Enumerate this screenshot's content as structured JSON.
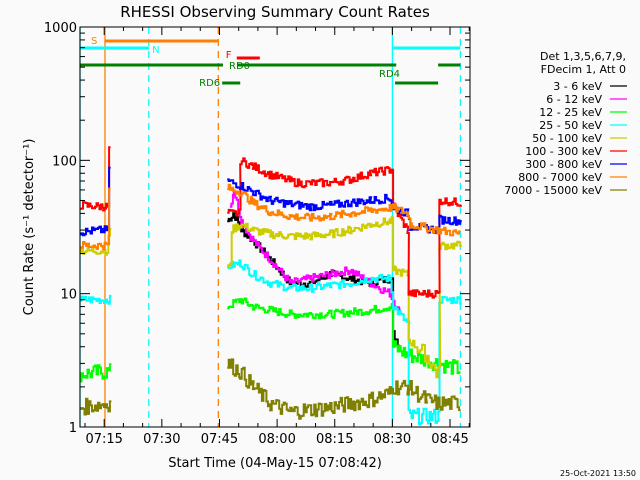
{
  "chart_data": {
    "type": "line",
    "title": "RHESSI Observing Summary Count Rates",
    "xlabel": "Start Time (04-May-15 07:08:42)",
    "ylabel": "Count Rate (s⁻¹ detector⁻¹)",
    "x_units": "minutes after 07:08:42",
    "xlim": [
      0,
      101.5
    ],
    "ylim": [
      1,
      1000
    ],
    "yscale": "log",
    "x_ticks": [
      {
        "label": "07:15",
        "min": 6.3
      },
      {
        "label": "07:30",
        "min": 21.3
      },
      {
        "label": "07:45",
        "min": 36.3
      },
      {
        "label": "08:00",
        "min": 51.3
      },
      {
        "label": "08:15",
        "min": 66.3
      },
      {
        "label": "08:30",
        "min": 81.3
      },
      {
        "label": "08:45",
        "min": 96.3
      }
    ],
    "y_ticks": [
      {
        "label": "1000",
        "value": 1000
      },
      {
        "label": "100",
        "value": 100
      },
      {
        "label": "10",
        "value": 10
      },
      {
        "label": "1",
        "value": 1
      }
    ],
    "legend_header": [
      "Det 1,3,5,6,7,9,",
      "FDecim 1, Att 0"
    ],
    "legend_position": "right",
    "series": [
      {
        "name": "3 - 6 keV",
        "color": "#000000",
        "segments": [
          [
            [
              38.3,
              35
            ],
            [
              40,
              40
            ],
            [
              42,
              30
            ],
            [
              45,
              25
            ],
            [
              49.5,
              18
            ],
            [
              54.7,
              12
            ],
            [
              60,
              12
            ],
            [
              65.1,
              14
            ],
            [
              70.3,
              13
            ],
            [
              75.5,
              12
            ],
            [
              80.7,
              13
            ],
            [
              81.5,
              5
            ],
            [
              83.3,
              4
            ]
          ]
        ]
      },
      {
        "name": "6 - 12 keV",
        "color": "#ff00ff",
        "segments": [
          [
            [
              39,
              45
            ],
            [
              40,
              60
            ],
            [
              42,
              35
            ],
            [
              45,
              25
            ],
            [
              49.5,
              18
            ],
            [
              54.7,
              12
            ],
            [
              60,
              13
            ],
            [
              65.1,
              14
            ],
            [
              70.3,
              15
            ],
            [
              75.5,
              12
            ],
            [
              80.7,
              10
            ],
            [
              83.3,
              7
            ]
          ]
        ]
      },
      {
        "name": "12 - 25 keV",
        "color": "#00ff00",
        "segments": [
          [
            [
              0,
              2.5
            ],
            [
              7,
              2.6
            ],
            [
              8,
              5
            ]
          ],
          [
            [
              38.3,
              8
            ],
            [
              41.7,
              9
            ],
            [
              45,
              8
            ],
            [
              49.5,
              7.5
            ],
            [
              54.7,
              7
            ],
            [
              65.1,
              7
            ],
            [
              75.5,
              7.5
            ],
            [
              80.7,
              8
            ],
            [
              81.5,
              4
            ],
            [
              85.2,
              3.5
            ],
            [
              93.2,
              3
            ],
            [
              99,
              2.7
            ]
          ]
        ]
      },
      {
        "name": "25 - 50 keV",
        "color": "#00ffff",
        "segments": [
          [
            [
              0,
              9
            ],
            [
              7,
              9
            ],
            [
              8,
              25
            ]
          ],
          [
            [
              38.3,
              16
            ],
            [
              41.7,
              17
            ],
            [
              45,
              14
            ],
            [
              49.5,
              12
            ],
            [
              54.7,
              11
            ],
            [
              60,
              11
            ],
            [
              65.1,
              11.5
            ],
            [
              70.3,
              12
            ],
            [
              75.5,
              13
            ],
            [
              80.7,
              13
            ],
            [
              81.5,
              8
            ],
            [
              85.2,
              6
            ],
            [
              85.5,
              1.2
            ],
            [
              93.2,
              1.2
            ],
            [
              93.5,
              9
            ],
            [
              99,
              9
            ]
          ]
        ]
      },
      {
        "name": "50 - 100 keV",
        "color": "#cccc00",
        "segments": [
          [
            [
              0,
              21
            ],
            [
              7,
              21
            ],
            [
              8,
              35
            ]
          ],
          [
            [
              38.3,
              16
            ],
            [
              39.5,
              30
            ],
            [
              41.7,
              33
            ],
            [
              45,
              30
            ],
            [
              49.5,
              28
            ],
            [
              54.7,
              27
            ],
            [
              60,
              27
            ],
            [
              65.1,
              28
            ],
            [
              70.3,
              30
            ],
            [
              75.5,
              33
            ],
            [
              80.7,
              35
            ],
            [
              81.5,
              15
            ],
            [
              85.2,
              14
            ],
            [
              85.5,
              4.5
            ],
            [
              90,
              3.5
            ],
            [
              93,
              2.5
            ],
            [
              93.5,
              23
            ],
            [
              99,
              23
            ]
          ]
        ]
      },
      {
        "name": "100 - 300 keV",
        "color": "#ff0000",
        "segments": [
          [
            [
              0,
              46
            ],
            [
              6,
              45
            ],
            [
              7.8,
              120
            ]
          ],
          [
            [
              38.3,
              40
            ],
            [
              41.4,
              40
            ],
            [
              41.7,
              100
            ],
            [
              45,
              90
            ],
            [
              49.5,
              78
            ],
            [
              54.7,
              70
            ],
            [
              57.3,
              67
            ],
            [
              65.1,
              68
            ],
            [
              70.3,
              72
            ],
            [
              75.5,
              80
            ],
            [
              80.7,
              85
            ],
            [
              81.5,
              45
            ],
            [
              85.2,
              30
            ],
            [
              85.5,
              10
            ],
            [
              93.2,
              10
            ],
            [
              93.5,
              50
            ],
            [
              99,
              48
            ]
          ]
        ]
      },
      {
        "name": "300 - 800 keV",
        "color": "#0000ff",
        "segments": [
          [
            [
              0,
              29
            ],
            [
              6,
              30
            ],
            [
              7.8,
              90
            ]
          ],
          [
            [
              38.3,
              70
            ],
            [
              41.7,
              65
            ],
            [
              45,
              58
            ],
            [
              49.5,
              50
            ],
            [
              54.7,
              47
            ],
            [
              60,
              45
            ],
            [
              65.1,
              46
            ],
            [
              70.3,
              48
            ],
            [
              75.5,
              50
            ],
            [
              80.7,
              52
            ],
            [
              81.5,
              44
            ],
            [
              85.2,
              40
            ],
            [
              86,
              32
            ],
            [
              93.2,
              30
            ],
            [
              93.5,
              36
            ],
            [
              99,
              35
            ]
          ]
        ]
      },
      {
        "name": "800 - 7000 keV",
        "color": "#ff8000",
        "segments": [
          [
            [
              0,
              23
            ],
            [
              6,
              23
            ],
            [
              7.8,
              60
            ]
          ],
          [
            [
              38.3,
              62
            ],
            [
              41.7,
              58
            ],
            [
              45,
              48
            ],
            [
              49.5,
              41
            ],
            [
              54.7,
              38
            ],
            [
              60,
              37
            ],
            [
              65.1,
              38
            ],
            [
              70.3,
              40
            ],
            [
              75.5,
              42
            ],
            [
              80.7,
              44
            ],
            [
              81.5,
              44
            ],
            [
              85.2,
              40
            ],
            [
              86,
              33
            ],
            [
              93.2,
              30
            ],
            [
              99,
              28
            ]
          ]
        ]
      },
      {
        "name": "7000 - 15000 keV",
        "color": "#808000",
        "segments": [
          [
            [
              0,
              1.4
            ],
            [
              7,
              1.5
            ],
            [
              8,
              3
            ]
          ],
          [
            [
              38.3,
              3
            ],
            [
              41.7,
              2.6
            ],
            [
              45,
              2
            ],
            [
              49.5,
              1.5
            ],
            [
              54.7,
              1.3
            ],
            [
              65.1,
              1.4
            ],
            [
              75.5,
              1.6
            ],
            [
              80.7,
              1.8
            ],
            [
              81.5,
              2
            ],
            [
              85.2,
              2
            ],
            [
              90,
              1.6
            ],
            [
              93.2,
              1.5
            ],
            [
              99,
              1.5
            ]
          ]
        ]
      }
    ],
    "annotations": {
      "bars": [
        {
          "label": "S",
          "color": "#ff8000",
          "ranges": [
            [
              6.5,
              36
            ]
          ],
          "level": 1
        },
        {
          "label": "N",
          "color": "#00ffff",
          "ranges": [
            [
              0,
              18
            ],
            [
              81.5,
              99
            ]
          ],
          "level": 2
        },
        {
          "label": "F",
          "color": "#ff0000",
          "ranges": [
            [
              40.8,
              46.8
            ]
          ],
          "level": 3
        },
        {
          "label": "RD0",
          "color": "#008000",
          "ranges": [
            [
              0,
              37.2
            ],
            [
              41,
              82.3
            ],
            [
              93.2,
              99
            ]
          ],
          "level": 4
        },
        {
          "label": "RD6",
          "color": "#008000",
          "ranges": [
            [
              37,
              41.7
            ]
          ],
          "level": 5
        },
        {
          "label": "RD4",
          "color": "#008000",
          "ranges": [
            [
              82,
              93.2
            ]
          ],
          "level": 5
        }
      ],
      "vlines": [
        {
          "min": 0,
          "color": "#00ffff",
          "style": "solid"
        },
        {
          "min": 6.5,
          "color": "#ff8000",
          "style": "solid"
        },
        {
          "min": 17.9,
          "color": "#00ffff",
          "style": "dashed"
        },
        {
          "min": 36,
          "color": "#ff8000",
          "style": "dashed"
        },
        {
          "min": 81.3,
          "color": "#00ffff",
          "style": "solid"
        },
        {
          "min": 99,
          "color": "#00ffff",
          "style": "dashed"
        }
      ]
    }
  },
  "footer": {
    "timestamp": "25-Oct-2021 13:50"
  }
}
